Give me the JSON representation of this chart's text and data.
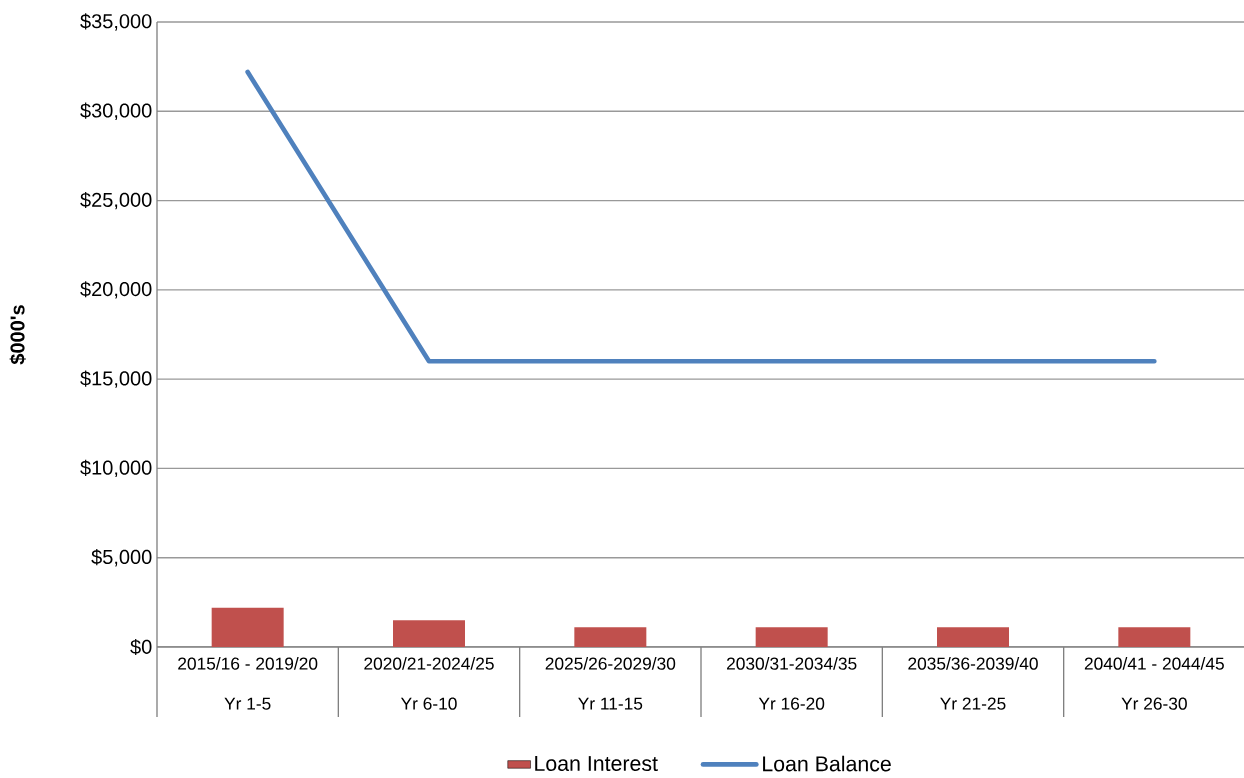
{
  "chart_data": {
    "type": "bar",
    "ylabel": "$000's",
    "categories": [
      "2015/16 - 2019/20\nYr 1-5",
      "2020/21-2024/25\nYr 6-10",
      "2025/26-2029/30\nYr 11-15",
      "2030/31-2034/35\nYr 16-20",
      "2035/36-2039/40\nYr 21-25",
      "2040/41 - 2044/45\nYr 26-30"
    ],
    "series": [
      {
        "name": "Loan Interest",
        "type": "bar",
        "color": "#c0504d",
        "values": [
          2200,
          1500,
          1100,
          1100,
          1100,
          1100
        ]
      },
      {
        "name": "Loan Balance",
        "type": "line",
        "color": "#4f81bd",
        "values": [
          32200,
          16000,
          16000,
          16000,
          16000,
          16000
        ]
      }
    ],
    "ylim": [
      0,
      35000
    ],
    "yticks": [
      {
        "value": 0,
        "label": "$0"
      },
      {
        "value": 5000,
        "label": "$5,000"
      },
      {
        "value": 10000,
        "label": "$10,000"
      },
      {
        "value": 15000,
        "label": "$15,000"
      },
      {
        "value": 20000,
        "label": "$20,000"
      },
      {
        "value": 25000,
        "label": "$25,000"
      },
      {
        "value": 30000,
        "label": "$30,000"
      },
      {
        "value": 35000,
        "label": "$35,000"
      }
    ],
    "grid": "y",
    "legend": "bottom"
  }
}
